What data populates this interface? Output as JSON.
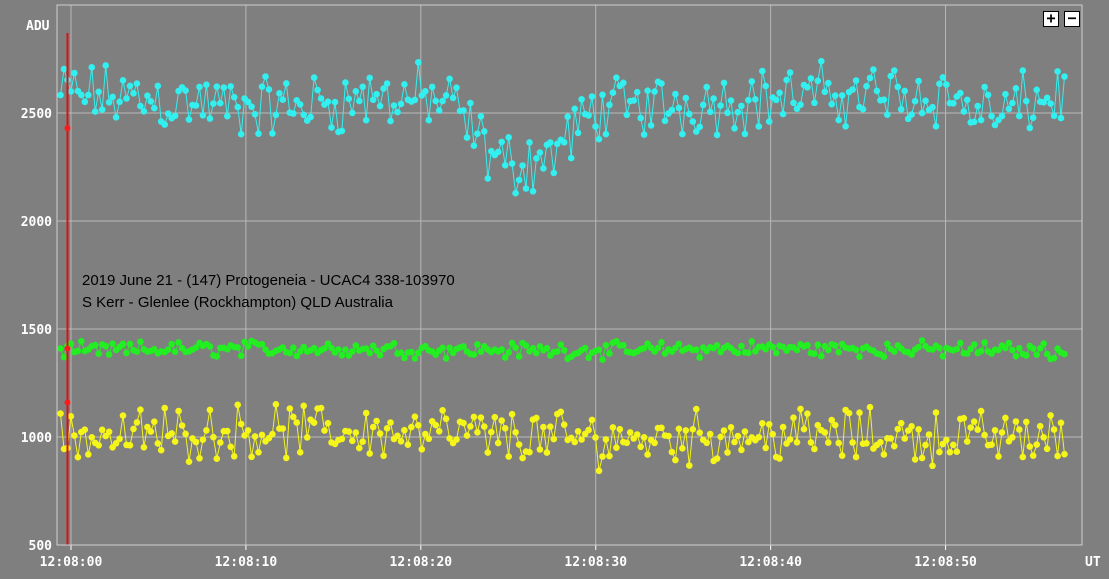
{
  "chart_data": {
    "type": "scatter",
    "title": "",
    "ylabel": "ADU",
    "xlabel": "UT",
    "ylim": [
      500,
      3000
    ],
    "yticks": [
      500,
      1000,
      1500,
      2000,
      2500
    ],
    "xlim_seconds": [
      -0.8,
      57.8
    ],
    "xticks": [
      "12:08:00",
      "12:08:10",
      "12:08:20",
      "12:08:30",
      "12:08:40",
      "12:08:50"
    ],
    "grid": true,
    "annotations": [
      "2019 June 21 - (147) Protogeneia - UCAC4 338-103970",
      "S Kerr - Glenlee (Rockhampton) QLD Australia"
    ],
    "marker_time": "12:07:59.8",
    "series": [
      {
        "color": "#33f0f0",
        "x": [
          0,
          5,
          10,
          15,
          20,
          22,
          24,
          25,
          26,
          28,
          30,
          35,
          40,
          45,
          50,
          53,
          55,
          57
        ],
        "values": [
          2590,
          2560,
          2520,
          2550,
          2580,
          2520,
          2300,
          2270,
          2260,
          2340,
          2520,
          2540,
          2570,
          2590,
          2580,
          2480,
          2560,
          2580
        ]
      },
      {
        "color": "#22ee22",
        "x": [
          0,
          10,
          20,
          30,
          40,
          50,
          57
        ],
        "values": [
          1400,
          1410,
          1405,
          1400,
          1410,
          1405,
          1400
        ]
      },
      {
        "color": "#f5f51a",
        "x": [
          0,
          10,
          20,
          30,
          40,
          50,
          57
        ],
        "values": [
          1000,
          1030,
          1020,
          990,
          1010,
          1000,
          1000
        ]
      }
    ]
  },
  "ui": {
    "zoom_in": "+",
    "zoom_out": "−"
  }
}
